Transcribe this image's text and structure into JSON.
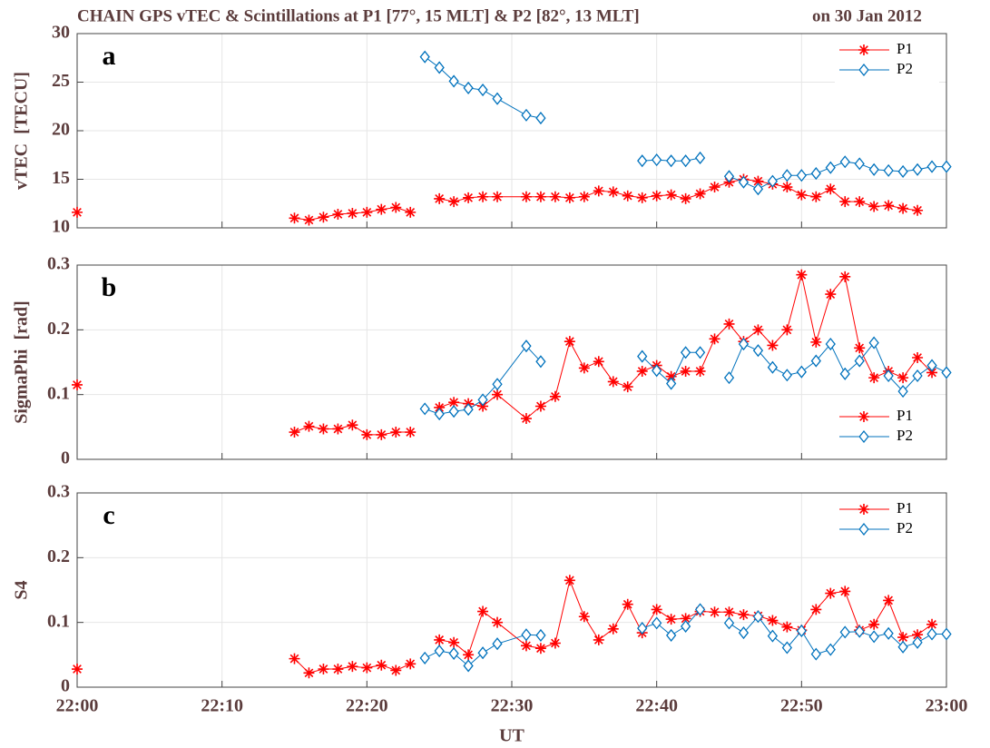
{
  "title": "CHAIN GPS vTEC & Scintillations at P1 [77°, 15 MLT] & P2 [82°, 13 MLT]",
  "date": "on 30 Jan 2012",
  "chart_data": [
    {
      "type": "line",
      "label": "a",
      "y_label": "vTEC  [TECU]",
      "ylim": [
        10,
        30
      ],
      "yticks": [
        10,
        15,
        20,
        25,
        30
      ],
      "xlim": [
        0,
        60
      ],
      "xticks": [
        0,
        10,
        20,
        30,
        40,
        50,
        60
      ],
      "grid": true,
      "legend": "northeast",
      "series": [
        {
          "name": "P1",
          "color": "#ff0000",
          "marker": "asterisk",
          "x": [
            0,
            1,
            15,
            16,
            17,
            18,
            19,
            20,
            21,
            22,
            23,
            24,
            25,
            26,
            27,
            28,
            29,
            31,
            32,
            33,
            34,
            35,
            36,
            37,
            38,
            39,
            40,
            41,
            42,
            43,
            44,
            45,
            46,
            47,
            48,
            49,
            50,
            51,
            52,
            53,
            54,
            55,
            56,
            57,
            58
          ],
          "values": [
            11.6,
            null,
            11.0,
            10.8,
            11.1,
            11.4,
            11.5,
            11.6,
            11.9,
            12.1,
            11.6,
            null,
            13.0,
            12.7,
            13.1,
            13.2,
            13.2,
            13.2,
            13.2,
            13.2,
            13.1,
            13.2,
            13.8,
            13.7,
            13.3,
            13.1,
            13.3,
            13.4,
            13.0,
            13.5,
            14.2,
            14.7,
            15.0,
            14.8,
            14.5,
            14.2,
            13.4,
            13.2,
            14.0,
            12.7,
            12.7,
            12.2,
            12.3,
            12.0,
            11.8
          ]
        },
        {
          "name": "P2",
          "color": "#0072bd",
          "marker": "diamond",
          "x": [
            24,
            25,
            26,
            27,
            28,
            29,
            31,
            32,
            33,
            39,
            40,
            41,
            42,
            43,
            44,
            45,
            46,
            47,
            48,
            49,
            50,
            51,
            52,
            53,
            54,
            55,
            56,
            57,
            58,
            59,
            60
          ],
          "values": [
            27.6,
            26.5,
            25.1,
            24.4,
            24.2,
            23.3,
            21.6,
            21.3,
            null,
            16.9,
            17.0,
            16.9,
            16.9,
            17.2,
            null,
            15.3,
            14.7,
            14.0,
            14.8,
            15.4,
            15.4,
            15.6,
            16.2,
            16.8,
            16.6,
            16.0,
            15.9,
            15.8,
            16.0,
            16.3,
            16.3
          ]
        }
      ]
    },
    {
      "type": "line",
      "label": "b",
      "y_label": "SigmaPhi  [rad]",
      "ylim": [
        0,
        0.3
      ],
      "yticks": [
        0,
        0.1,
        0.2,
        0.3
      ],
      "xlim": [
        0,
        60
      ],
      "xticks": [
        0,
        10,
        20,
        30,
        40,
        50,
        60
      ],
      "grid": true,
      "legend": "southeast",
      "series": [
        {
          "name": "P1",
          "color": "#ff0000",
          "marker": "asterisk",
          "x": [
            0,
            1,
            15,
            16,
            17,
            18,
            19,
            20,
            21,
            22,
            23,
            24,
            25,
            26,
            27,
            28,
            29,
            31,
            32,
            33,
            34,
            35,
            36,
            37,
            38,
            39,
            40,
            41,
            42,
            43,
            44,
            45,
            46,
            47,
            48,
            49,
            50,
            51,
            52,
            53,
            54,
            55,
            56,
            57,
            58,
            59
          ],
          "values": [
            0.115,
            null,
            0.042,
            0.051,
            0.047,
            0.047,
            0.053,
            0.038,
            0.038,
            0.042,
            0.042,
            null,
            0.08,
            0.088,
            0.086,
            0.082,
            0.1,
            0.063,
            0.082,
            0.097,
            0.182,
            0.141,
            0.151,
            0.12,
            0.112,
            0.136,
            0.145,
            0.128,
            0.136,
            0.136,
            0.186,
            0.209,
            0.182,
            0.2,
            0.176,
            0.2,
            0.285,
            0.181,
            0.255,
            0.282,
            0.172,
            0.126,
            0.136,
            0.126,
            0.157,
            0.134
          ]
        },
        {
          "name": "P2",
          "color": "#0072bd",
          "marker": "diamond",
          "x": [
            24,
            25,
            26,
            27,
            28,
            29,
            31,
            32,
            33,
            39,
            40,
            41,
            42,
            43,
            44,
            45,
            46,
            47,
            48,
            49,
            50,
            51,
            52,
            53,
            54,
            55,
            56,
            57,
            58,
            59,
            60
          ],
          "values": [
            0.078,
            0.07,
            0.074,
            0.077,
            0.092,
            0.116,
            0.175,
            0.151,
            null,
            0.159,
            0.137,
            0.117,
            0.165,
            0.165,
            null,
            0.126,
            0.178,
            0.168,
            0.142,
            0.13,
            0.135,
            0.152,
            0.178,
            0.132,
            0.152,
            0.18,
            0.129,
            0.105,
            0.129,
            0.145,
            0.134
          ]
        }
      ]
    },
    {
      "type": "line",
      "label": "c",
      "y_label": "S4",
      "x_label": "UT",
      "ylim": [
        0,
        0.3
      ],
      "yticks": [
        0,
        0.1,
        0.2,
        0.3
      ],
      "xlim": [
        0,
        60
      ],
      "xticks": [
        {
          "value": 0,
          "label": "22:00"
        },
        {
          "value": 10,
          "label": "22:10"
        },
        {
          "value": 20,
          "label": "22:20"
        },
        {
          "value": 30,
          "label": "22:30"
        },
        {
          "value": 40,
          "label": "22:40"
        },
        {
          "value": 50,
          "label": "22:50"
        },
        {
          "value": 60,
          "label": "23:00"
        }
      ],
      "grid": true,
      "legend": "northeast",
      "series": [
        {
          "name": "P1",
          "color": "#ff0000",
          "marker": "asterisk",
          "x": [
            0,
            1,
            15,
            16,
            17,
            18,
            19,
            20,
            21,
            22,
            23,
            24,
            25,
            26,
            27,
            28,
            29,
            31,
            32,
            33,
            34,
            35,
            36,
            37,
            38,
            39,
            40,
            41,
            42,
            43,
            44,
            45,
            46,
            47,
            48,
            49,
            50,
            51,
            52,
            53,
            54,
            55,
            56,
            57,
            58,
            59
          ],
          "values": [
            0.028,
            null,
            0.044,
            0.022,
            0.028,
            0.028,
            0.032,
            0.03,
            0.034,
            0.026,
            0.036,
            null,
            0.073,
            0.069,
            0.05,
            0.117,
            0.1,
            0.064,
            0.06,
            0.068,
            0.165,
            0.109,
            0.073,
            0.09,
            0.128,
            0.084,
            0.12,
            0.105,
            0.106,
            0.117,
            0.116,
            0.116,
            0.112,
            0.11,
            0.103,
            0.093,
            0.088,
            0.12,
            0.145,
            0.148,
            0.088,
            0.097,
            0.134,
            0.077,
            0.081,
            0.097
          ]
        },
        {
          "name": "P2",
          "color": "#0072bd",
          "marker": "diamond",
          "x": [
            24,
            25,
            26,
            27,
            28,
            29,
            31,
            32,
            33,
            39,
            40,
            41,
            42,
            43,
            44,
            45,
            46,
            47,
            48,
            49,
            50,
            51,
            52,
            53,
            54,
            55,
            56,
            57,
            58,
            59,
            60
          ],
          "values": [
            0.045,
            0.056,
            0.052,
            0.033,
            0.053,
            0.067,
            0.081,
            0.08,
            null,
            0.091,
            0.099,
            0.08,
            0.094,
            0.12,
            null,
            0.099,
            0.084,
            0.109,
            0.079,
            0.061,
            0.087,
            0.051,
            0.058,
            0.085,
            0.086,
            0.078,
            0.083,
            0.062,
            0.069,
            0.082,
            0.082
          ]
        }
      ]
    }
  ]
}
